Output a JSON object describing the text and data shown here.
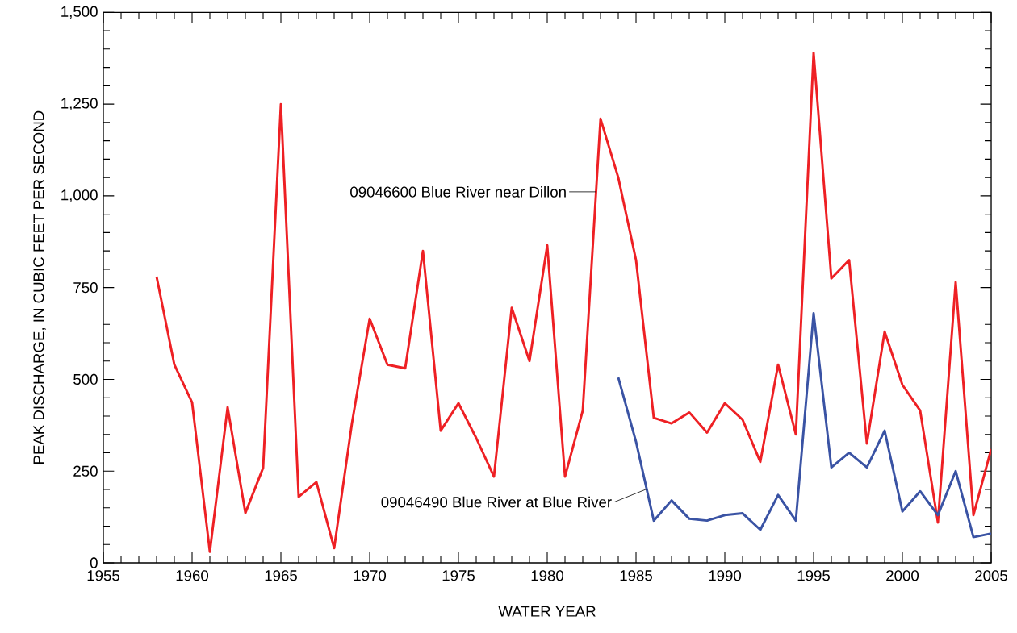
{
  "chart_data": {
    "type": "line",
    "xlabel": "WATER YEAR",
    "ylabel": "PEAK DISCHARGE, IN CUBIC FEET PER SECOND",
    "xlim": [
      1955,
      2005
    ],
    "xticks": [
      1955,
      1960,
      1965,
      1970,
      1975,
      1980,
      1985,
      1990,
      1995,
      2000,
      2005
    ],
    "ylim": [
      0,
      1500
    ],
    "yticks": [
      0,
      250,
      500,
      750,
      {
        "value": 1000,
        "label": "1,000"
      },
      {
        "value": 1250,
        "label": "1,250"
      },
      {
        "value": 1500,
        "label": "1,500"
      }
    ],
    "grid": false,
    "marker": "none",
    "line_style": "solid",
    "series": [
      {
        "color": "#ee2024",
        "x": [
          1958,
          1959,
          1960,
          1961,
          1962,
          1963,
          1964,
          1965,
          1966,
          1967,
          1968,
          1969,
          1970,
          1971,
          1972,
          1973,
          1974,
          1975,
          1976,
          1977,
          1978,
          1979,
          1980,
          1981,
          1982,
          1983,
          1984,
          1985,
          1986,
          1987,
          1988,
          1989,
          1990,
          1991,
          1992,
          1993,
          1994,
          1995,
          1996,
          1997,
          1998,
          1999,
          2000,
          2001,
          2002,
          2003,
          2004,
          2005
        ],
        "values": [
          780,
          540,
          437,
          30,
          424,
          136,
          259,
          1250,
          180,
          220,
          40,
          380,
          665,
          540,
          530,
          850,
          360,
          435,
          340,
          235,
          695,
          550,
          865,
          235,
          415,
          1210,
          1050,
          825,
          395,
          380,
          410,
          355,
          435,
          390,
          275,
          540,
          350,
          1390,
          775,
          825,
          325,
          630,
          485,
          415,
          110,
          765,
          130,
          310
        ]
      },
      {
        "color": "#3a53a4",
        "x": [
          1984,
          1985,
          1986,
          1987,
          1988,
          1989,
          1990,
          1991,
          1992,
          1993,
          1994,
          1995,
          1996,
          1997,
          1998,
          1999,
          2000,
          2001,
          2002,
          2003,
          2004,
          2005
        ],
        "values": [
          505,
          330,
          115,
          170,
          120,
          115,
          130,
          135,
          90,
          185,
          115,
          680,
          260,
          300,
          260,
          360,
          140,
          195,
          130,
          250,
          70,
          80
        ]
      }
    ],
    "annotations": [
      {
        "text": "09046600 Blue River near Dillon",
        "x": 1982.75,
        "y": 1011
      },
      {
        "text": "09046490 Blue River at Blue River",
        "x": 1985.6,
        "y": 201
      }
    ]
  }
}
